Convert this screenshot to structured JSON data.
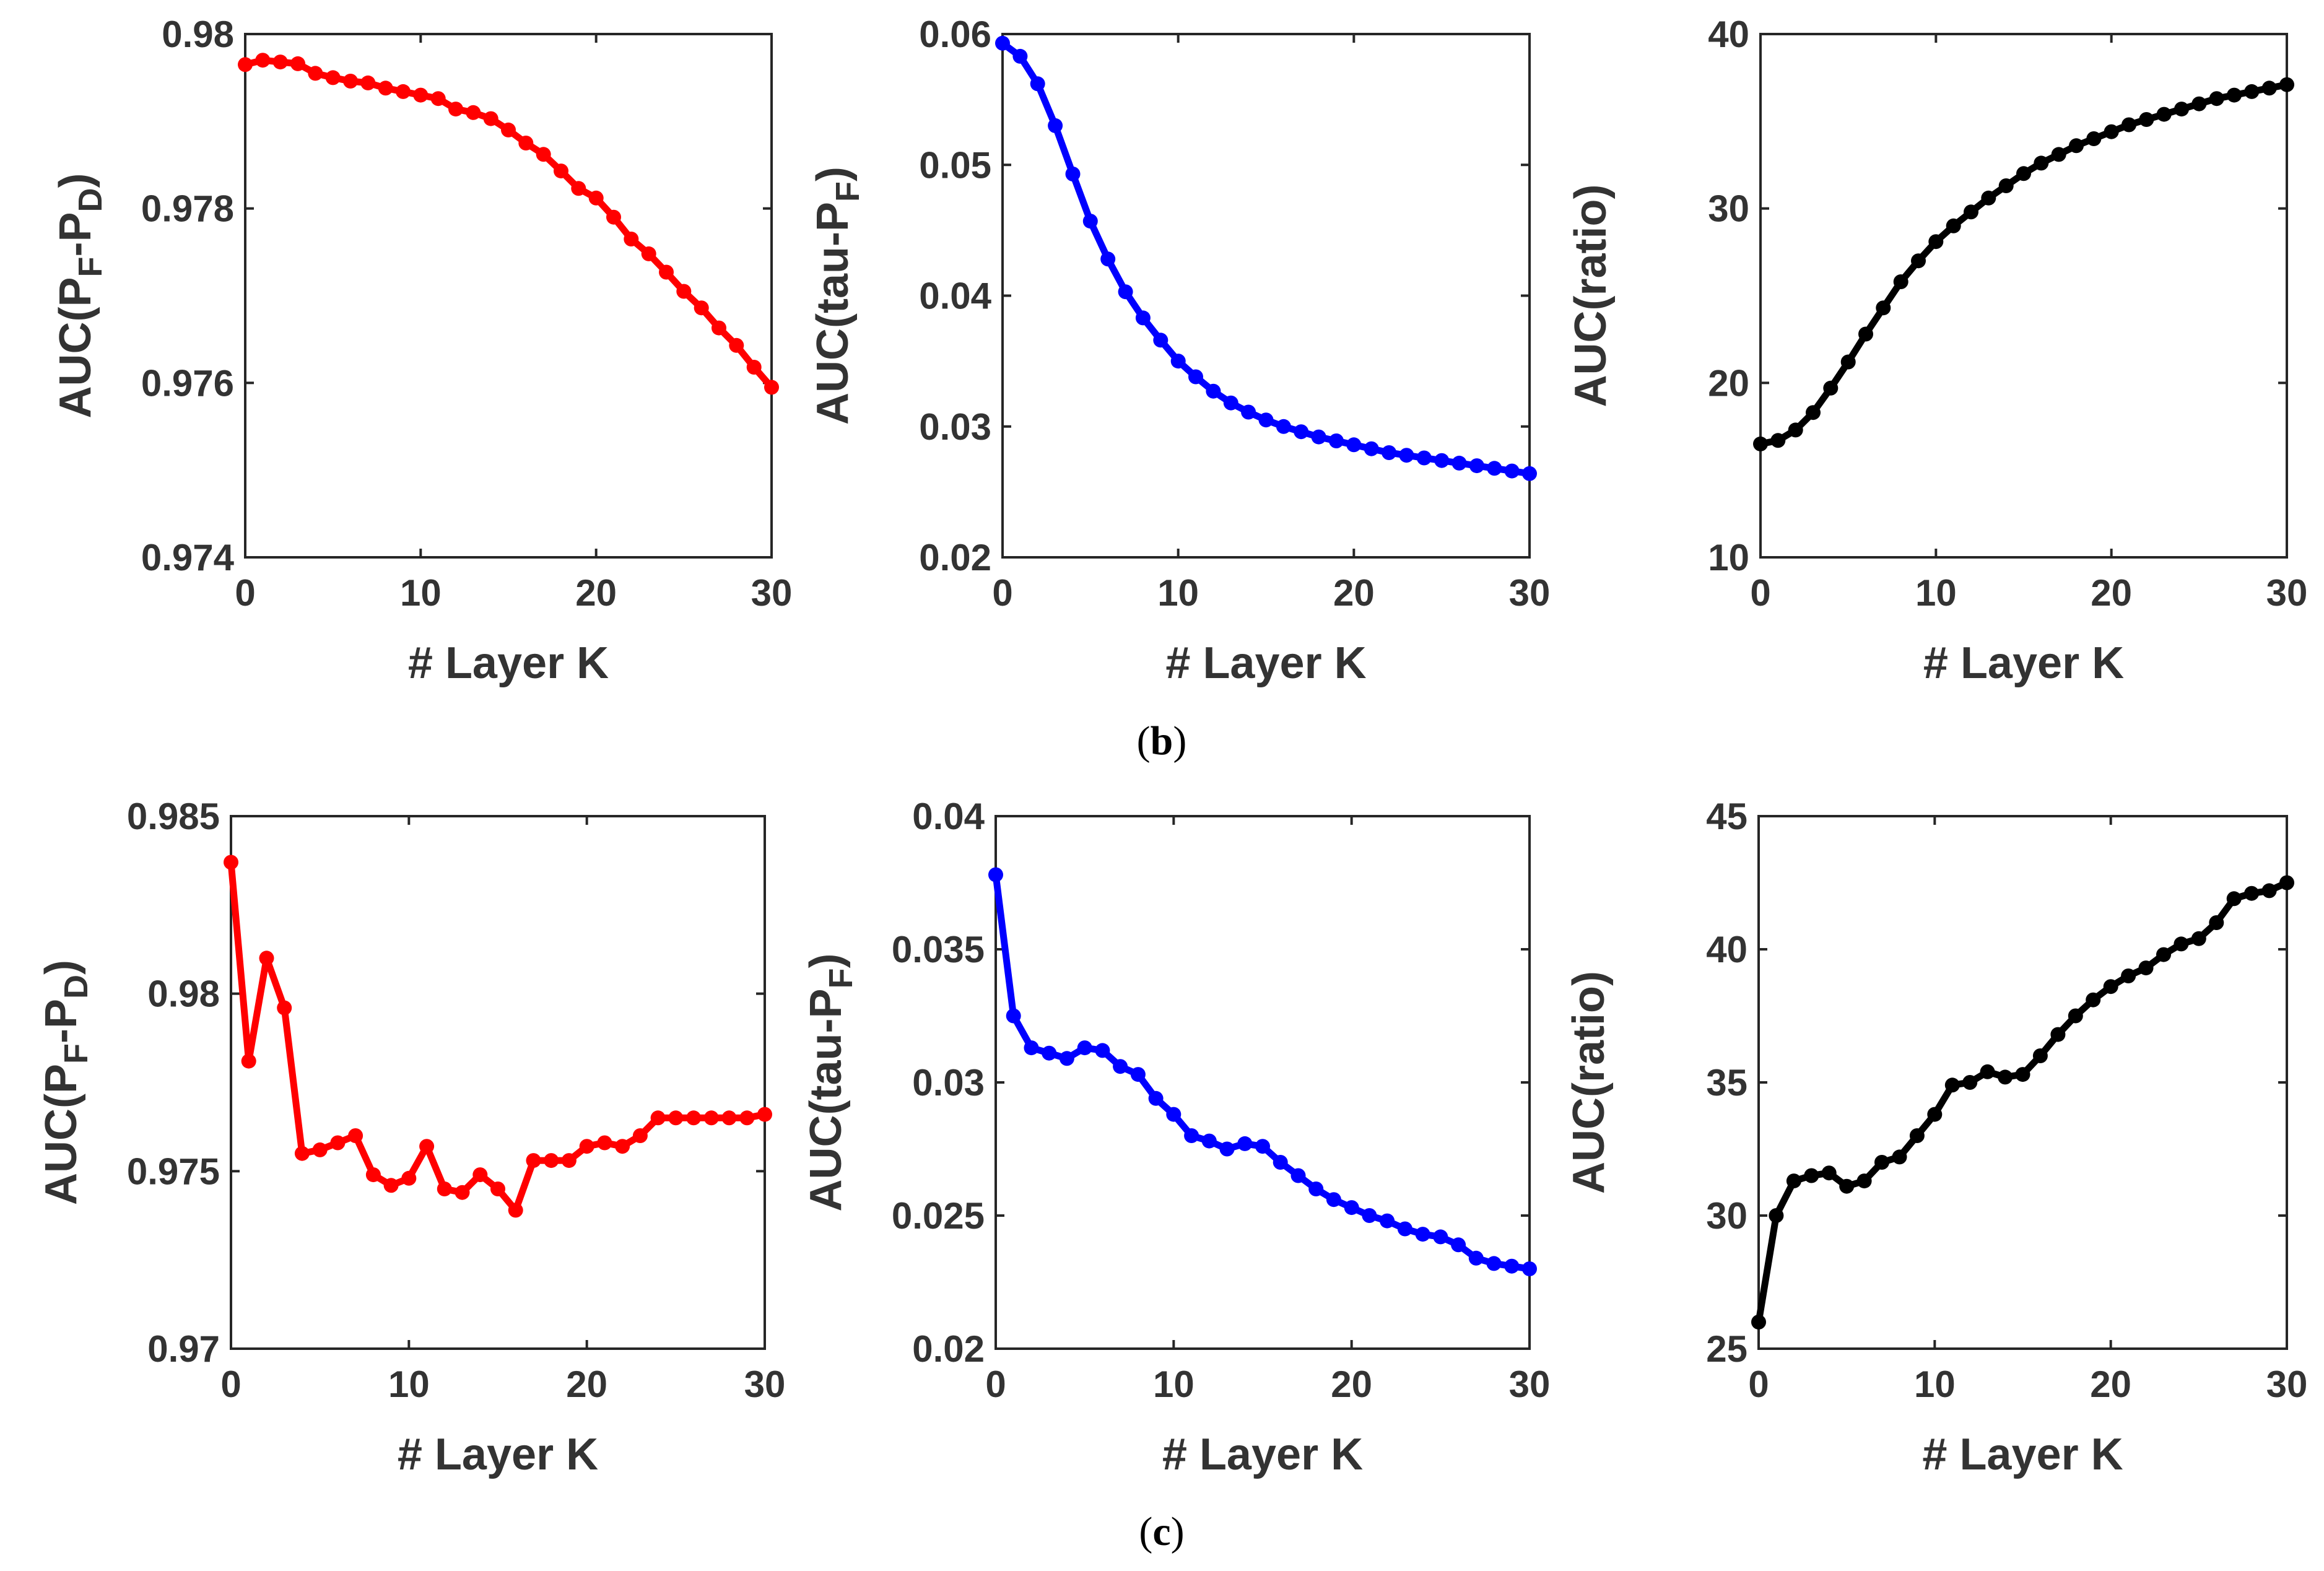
{
  "figure": {
    "captions": [
      {
        "open": "(",
        "letter": "b",
        "close": ")"
      },
      {
        "open": "(",
        "letter": "c",
        "close": ")"
      }
    ]
  },
  "chart_data": [
    {
      "type": "line",
      "row": "b",
      "color": "#ff0000",
      "xlabel": "# Layer K",
      "ylabel": {
        "main": "AUC(P",
        "sub1": "F",
        "mid": "-P",
        "sub2": "D",
        "end": ")"
      },
      "xlim": [
        0,
        30
      ],
      "ylim": [
        0.974,
        0.98
      ],
      "xticks": [
        0,
        10,
        20,
        30
      ],
      "yticks": [
        0.974,
        0.976,
        0.978,
        0.98
      ],
      "xtick_labels": [
        "0",
        "10",
        "20",
        "30"
      ],
      "ytick_labels": [
        "0.974",
        "0.976",
        "0.978",
        "0.98"
      ],
      "x": [
        0,
        1,
        2,
        3,
        4,
        5,
        6,
        7,
        8,
        9,
        10,
        11,
        12,
        13,
        14,
        15,
        16,
        17,
        18,
        19,
        20,
        21,
        22,
        23,
        24,
        25,
        26,
        27,
        28,
        29,
        30
      ],
      "y": [
        0.97965,
        0.9797,
        0.97968,
        0.97966,
        0.97955,
        0.9795,
        0.97946,
        0.97944,
        0.97938,
        0.97934,
        0.9793,
        0.97926,
        0.97914,
        0.9791,
        0.97903,
        0.9789,
        0.97875,
        0.97862,
        0.97843,
        0.97823,
        0.97812,
        0.9779,
        0.97765,
        0.97748,
        0.97727,
        0.97705,
        0.97686,
        0.97663,
        0.97643,
        0.97618,
        0.97595
      ]
    },
    {
      "type": "line",
      "row": "b",
      "color": "#0000ff",
      "xlabel": "# Layer K",
      "ylabel": {
        "main": "AUC(tau-P",
        "sub1": "F",
        "mid": "",
        "sub2": "",
        "end": ")"
      },
      "xlim": [
        0,
        30
      ],
      "ylim": [
        0.02,
        0.06
      ],
      "xticks": [
        0,
        10,
        20,
        30
      ],
      "yticks": [
        0.02,
        0.03,
        0.04,
        0.05,
        0.06
      ],
      "xtick_labels": [
        "0",
        "10",
        "20",
        "30"
      ],
      "ytick_labels": [
        "0.02",
        "0.03",
        "0.04",
        "0.05",
        "0.06"
      ],
      "x": [
        0,
        1,
        2,
        3,
        4,
        5,
        6,
        7,
        8,
        9,
        10,
        11,
        12,
        13,
        14,
        15,
        16,
        17,
        18,
        19,
        20,
        21,
        22,
        23,
        24,
        25,
        26,
        27,
        28,
        29,
        30
      ],
      "y": [
        0.0593,
        0.0583,
        0.0562,
        0.053,
        0.0493,
        0.0457,
        0.0428,
        0.0403,
        0.0383,
        0.0366,
        0.035,
        0.0338,
        0.0327,
        0.0318,
        0.0311,
        0.0305,
        0.03,
        0.0296,
        0.0292,
        0.0289,
        0.0286,
        0.0283,
        0.028,
        0.0278,
        0.0276,
        0.0274,
        0.0272,
        0.027,
        0.0268,
        0.0266,
        0.0264
      ]
    },
    {
      "type": "line",
      "row": "b",
      "color": "#000000",
      "xlabel": "# Layer K",
      "ylabel": {
        "main": "AUC(ratio)",
        "sub1": "",
        "mid": "",
        "sub2": "",
        "end": ""
      },
      "xlim": [
        0,
        30
      ],
      "ylim": [
        10,
        40
      ],
      "xticks": [
        0,
        10,
        20,
        30
      ],
      "yticks": [
        10,
        20,
        30,
        40
      ],
      "xtick_labels": [
        "0",
        "10",
        "20",
        "30"
      ],
      "ytick_labels": [
        "10",
        "20",
        "30",
        "40"
      ],
      "x": [
        0,
        1,
        2,
        3,
        4,
        5,
        6,
        7,
        8,
        9,
        10,
        11,
        12,
        13,
        14,
        15,
        16,
        17,
        18,
        19,
        20,
        21,
        22,
        23,
        24,
        25,
        26,
        27,
        28,
        29,
        30
      ],
      "y": [
        16.5,
        16.7,
        17.3,
        18.3,
        19.7,
        21.2,
        22.8,
        24.3,
        25.8,
        27.0,
        28.1,
        29.0,
        29.8,
        30.6,
        31.3,
        32.0,
        32.6,
        33.1,
        33.6,
        34.0,
        34.4,
        34.8,
        35.1,
        35.4,
        35.7,
        36.0,
        36.3,
        36.5,
        36.7,
        36.9,
        37.1
      ]
    },
    {
      "type": "line",
      "row": "c",
      "color": "#ff0000",
      "xlabel": "# Layer K",
      "ylabel": {
        "main": "AUC(P",
        "sub1": "F",
        "mid": "-P",
        "sub2": "D",
        "end": ")"
      },
      "xlim": [
        0,
        30
      ],
      "ylim": [
        0.97,
        0.985
      ],
      "xticks": [
        0,
        10,
        20,
        30
      ],
      "yticks": [
        0.97,
        0.975,
        0.98,
        0.985
      ],
      "xtick_labels": [
        "0",
        "10",
        "20",
        "30"
      ],
      "ytick_labels": [
        "0.97",
        "0.975",
        "0.98",
        "0.985"
      ],
      "x": [
        0,
        1,
        2,
        3,
        4,
        5,
        6,
        7,
        8,
        9,
        10,
        11,
        12,
        13,
        14,
        15,
        16,
        17,
        18,
        19,
        20,
        21,
        22,
        23,
        24,
        25,
        26,
        27,
        28,
        29,
        30
      ],
      "y": [
        0.9837,
        0.9781,
        0.981,
        0.9796,
        0.9755,
        0.9756,
        0.9758,
        0.976,
        0.9749,
        0.9746,
        0.9748,
        0.9757,
        0.9745,
        0.9744,
        0.9749,
        0.9745,
        0.9739,
        0.9753,
        0.9753,
        0.9753,
        0.9757,
        0.9758,
        0.9757,
        0.976,
        0.9765,
        0.9765,
        0.9765,
        0.9765,
        0.9765,
        0.9765,
        0.9766
      ]
    },
    {
      "type": "line",
      "row": "c",
      "color": "#0000ff",
      "xlabel": "# Layer K",
      "ylabel": {
        "main": "AUC(tau-P",
        "sub1": "F",
        "mid": "",
        "sub2": "",
        "end": ")"
      },
      "xlim": [
        0,
        30
      ],
      "ylim": [
        0.02,
        0.04
      ],
      "xticks": [
        0,
        10,
        20,
        30
      ],
      "yticks": [
        0.02,
        0.025,
        0.03,
        0.035,
        0.04
      ],
      "xtick_labels": [
        "0",
        "10",
        "20",
        "30"
      ],
      "ytick_labels": [
        "0.02",
        "0.025",
        "0.03",
        "0.035",
        "0.04"
      ],
      "x": [
        0,
        1,
        2,
        3,
        4,
        5,
        6,
        7,
        8,
        9,
        10,
        11,
        12,
        13,
        14,
        15,
        16,
        17,
        18,
        19,
        20,
        21,
        22,
        23,
        24,
        25,
        26,
        27,
        28,
        29,
        30
      ],
      "y": [
        0.0378,
        0.0325,
        0.0313,
        0.0311,
        0.0309,
        0.0313,
        0.0312,
        0.0306,
        0.0303,
        0.0294,
        0.0288,
        0.028,
        0.0278,
        0.0275,
        0.0277,
        0.0276,
        0.027,
        0.0265,
        0.026,
        0.0256,
        0.0253,
        0.025,
        0.0248,
        0.0245,
        0.0243,
        0.0242,
        0.0239,
        0.0234,
        0.0232,
        0.0231,
        0.023
      ]
    },
    {
      "type": "line",
      "row": "c",
      "color": "#000000",
      "xlabel": "# Layer K",
      "ylabel": {
        "main": "AUC(ratio)",
        "sub1": "",
        "mid": "",
        "sub2": "",
        "end": ""
      },
      "xlim": [
        0,
        30
      ],
      "ylim": [
        25,
        45
      ],
      "xticks": [
        0,
        10,
        20,
        30
      ],
      "yticks": [
        25,
        30,
        35,
        40,
        45
      ],
      "xtick_labels": [
        "0",
        "10",
        "20",
        "30"
      ],
      "ytick_labels": [
        "25",
        "30",
        "35",
        "40",
        "45"
      ],
      "x": [
        0,
        1,
        2,
        3,
        4,
        5,
        6,
        7,
        8,
        9,
        10,
        11,
        12,
        13,
        14,
        15,
        16,
        17,
        18,
        19,
        20,
        21,
        22,
        23,
        24,
        25,
        26,
        27,
        28,
        29,
        30
      ],
      "y": [
        26.0,
        30.0,
        31.3,
        31.5,
        31.6,
        31.1,
        31.3,
        32.0,
        32.2,
        33.0,
        33.8,
        34.9,
        35.0,
        35.4,
        35.2,
        35.3,
        36.0,
        36.8,
        37.5,
        38.1,
        38.6,
        39.0,
        39.3,
        39.8,
        40.2,
        40.4,
        41.0,
        41.9,
        42.1,
        42.2,
        42.5
      ]
    }
  ]
}
